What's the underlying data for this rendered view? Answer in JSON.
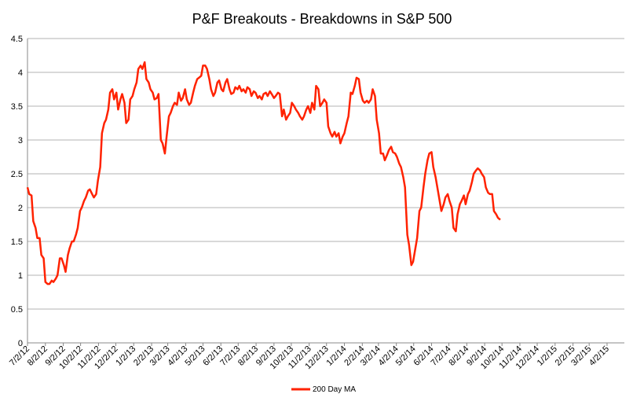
{
  "chart_data": {
    "type": "line",
    "title": "P&F Breakouts - Breakdowns in S&P 500",
    "xlabel": "",
    "ylabel": "",
    "ylim": [
      0,
      4.5
    ],
    "y_ticks": [
      "0",
      "0.5",
      "1",
      "1.5",
      "2",
      "2.5",
      "3",
      "3.5",
      "4",
      "4.5"
    ],
    "x_range": [
      "2012-07-02",
      "2015-05-02"
    ],
    "x_ticks": [
      {
        "date": "2012-07-02",
        "label": "7/2/12"
      },
      {
        "date": "2012-08-02",
        "label": "8/2/12"
      },
      {
        "date": "2012-09-02",
        "label": "9/2/12"
      },
      {
        "date": "2012-10-02",
        "label": "10/2/12"
      },
      {
        "date": "2012-11-02",
        "label": "11/2/12"
      },
      {
        "date": "2012-12-02",
        "label": "12/2/12"
      },
      {
        "date": "2013-01-02",
        "label": "1/2/13"
      },
      {
        "date": "2013-02-02",
        "label": "2/2/13"
      },
      {
        "date": "2013-03-02",
        "label": "3/2/13"
      },
      {
        "date": "2013-04-02",
        "label": "4/2/13"
      },
      {
        "date": "2013-05-02",
        "label": "5/2/13"
      },
      {
        "date": "2013-06-02",
        "label": "6/2/13"
      },
      {
        "date": "2013-07-02",
        "label": "7/2/13"
      },
      {
        "date": "2013-08-02",
        "label": "8/2/13"
      },
      {
        "date": "2013-09-02",
        "label": "9/2/13"
      },
      {
        "date": "2013-10-02",
        "label": "10/2/13"
      },
      {
        "date": "2013-11-02",
        "label": "11/2/13"
      },
      {
        "date": "2013-12-02",
        "label": "12/2/13"
      },
      {
        "date": "2014-01-02",
        "label": "1/2/14"
      },
      {
        "date": "2014-02-02",
        "label": "2/2/14"
      },
      {
        "date": "2014-03-02",
        "label": "3/2/14"
      },
      {
        "date": "2014-04-02",
        "label": "4/2/14"
      },
      {
        "date": "2014-05-02",
        "label": "5/2/14"
      },
      {
        "date": "2014-06-02",
        "label": "6/2/14"
      },
      {
        "date": "2014-07-02",
        "label": "7/2/14"
      },
      {
        "date": "2014-08-02",
        "label": "8/2/14"
      },
      {
        "date": "2014-09-02",
        "label": "9/2/14"
      },
      {
        "date": "2014-10-02",
        "label": "10/2/14"
      },
      {
        "date": "2014-11-02",
        "label": "11/2/14"
      },
      {
        "date": "2014-12-02",
        "label": "12/2/14"
      },
      {
        "date": "2015-01-02",
        "label": "1/2/15"
      },
      {
        "date": "2015-02-02",
        "label": "2/2/15"
      },
      {
        "date": "2015-03-02",
        "label": "3/2/15"
      },
      {
        "date": "2015-04-02",
        "label": "4/2/15"
      }
    ],
    "grid": {
      "horizontal": true,
      "vertical": false
    },
    "legend_position": "bottom",
    "series": [
      {
        "name": "200 Day MA",
        "color": "#ff2200",
        "points": [
          [
            "2012-07-02",
            2.3
          ],
          [
            "2012-07-05",
            2.2
          ],
          [
            "2012-07-09",
            2.18
          ],
          [
            "2012-07-12",
            1.8
          ],
          [
            "2012-07-16",
            1.7
          ],
          [
            "2012-07-19",
            1.55
          ],
          [
            "2012-07-23",
            1.55
          ],
          [
            "2012-07-26",
            1.3
          ],
          [
            "2012-07-30",
            1.25
          ],
          [
            "2012-08-02",
            0.9
          ],
          [
            "2012-08-06",
            0.87
          ],
          [
            "2012-08-09",
            0.87
          ],
          [
            "2012-08-13",
            0.92
          ],
          [
            "2012-08-16",
            0.9
          ],
          [
            "2012-08-20",
            0.95
          ],
          [
            "2012-08-23",
            1.0
          ],
          [
            "2012-08-27",
            1.25
          ],
          [
            "2012-08-30",
            1.25
          ],
          [
            "2012-09-03",
            1.15
          ],
          [
            "2012-09-06",
            1.05
          ],
          [
            "2012-09-10",
            1.3
          ],
          [
            "2012-09-13",
            1.4
          ],
          [
            "2012-09-17",
            1.5
          ],
          [
            "2012-09-20",
            1.5
          ],
          [
            "2012-09-24",
            1.6
          ],
          [
            "2012-09-27",
            1.7
          ],
          [
            "2012-10-01",
            1.95
          ],
          [
            "2012-10-04",
            2.0
          ],
          [
            "2012-10-08",
            2.1
          ],
          [
            "2012-10-11",
            2.15
          ],
          [
            "2012-10-15",
            2.25
          ],
          [
            "2012-10-18",
            2.27
          ],
          [
            "2012-10-22",
            2.2
          ],
          [
            "2012-10-25",
            2.15
          ],
          [
            "2012-10-29",
            2.2
          ],
          [
            "2012-11-01",
            2.4
          ],
          [
            "2012-11-05",
            2.6
          ],
          [
            "2012-11-08",
            3.1
          ],
          [
            "2012-11-12",
            3.25
          ],
          [
            "2012-11-15",
            3.3
          ],
          [
            "2012-11-19",
            3.45
          ],
          [
            "2012-11-22",
            3.7
          ],
          [
            "2012-11-26",
            3.75
          ],
          [
            "2012-11-29",
            3.6
          ],
          [
            "2012-12-03",
            3.7
          ],
          [
            "2012-12-06",
            3.45
          ],
          [
            "2012-12-10",
            3.6
          ],
          [
            "2012-12-13",
            3.68
          ],
          [
            "2012-12-17",
            3.55
          ],
          [
            "2012-12-20",
            3.25
          ],
          [
            "2012-12-24",
            3.3
          ],
          [
            "2012-12-27",
            3.6
          ],
          [
            "2012-12-31",
            3.65
          ],
          [
            "2013-01-03",
            3.75
          ],
          [
            "2013-01-07",
            3.85
          ],
          [
            "2013-01-10",
            4.05
          ],
          [
            "2013-01-14",
            4.1
          ],
          [
            "2013-01-17",
            4.05
          ],
          [
            "2013-01-21",
            4.15
          ],
          [
            "2013-01-24",
            3.9
          ],
          [
            "2013-01-28",
            3.85
          ],
          [
            "2013-01-31",
            3.75
          ],
          [
            "2013-02-04",
            3.7
          ],
          [
            "2013-02-07",
            3.6
          ],
          [
            "2013-02-11",
            3.62
          ],
          [
            "2013-02-14",
            3.68
          ],
          [
            "2013-02-18",
            3.0
          ],
          [
            "2013-02-21",
            2.95
          ],
          [
            "2013-02-25",
            2.8
          ],
          [
            "2013-02-28",
            3.05
          ],
          [
            "2013-03-04",
            3.35
          ],
          [
            "2013-03-07",
            3.4
          ],
          [
            "2013-03-11",
            3.5
          ],
          [
            "2013-03-14",
            3.55
          ],
          [
            "2013-03-18",
            3.52
          ],
          [
            "2013-03-21",
            3.7
          ],
          [
            "2013-03-25",
            3.58
          ],
          [
            "2013-03-28",
            3.62
          ],
          [
            "2013-04-01",
            3.75
          ],
          [
            "2013-04-04",
            3.6
          ],
          [
            "2013-04-08",
            3.52
          ],
          [
            "2013-04-11",
            3.55
          ],
          [
            "2013-04-15",
            3.7
          ],
          [
            "2013-04-18",
            3.8
          ],
          [
            "2013-04-22",
            3.9
          ],
          [
            "2013-04-25",
            3.92
          ],
          [
            "2013-04-29",
            3.95
          ],
          [
            "2013-05-02",
            4.1
          ],
          [
            "2013-05-06",
            4.1
          ],
          [
            "2013-05-09",
            4.05
          ],
          [
            "2013-05-13",
            3.9
          ],
          [
            "2013-05-16",
            3.75
          ],
          [
            "2013-05-20",
            3.65
          ],
          [
            "2013-05-23",
            3.7
          ],
          [
            "2013-05-27",
            3.85
          ],
          [
            "2013-05-30",
            3.88
          ],
          [
            "2013-06-03",
            3.75
          ],
          [
            "2013-06-06",
            3.72
          ],
          [
            "2013-06-10",
            3.85
          ],
          [
            "2013-06-13",
            3.9
          ],
          [
            "2013-06-17",
            3.75
          ],
          [
            "2013-06-20",
            3.68
          ],
          [
            "2013-06-24",
            3.7
          ],
          [
            "2013-06-27",
            3.78
          ],
          [
            "2013-07-01",
            3.75
          ],
          [
            "2013-07-04",
            3.8
          ],
          [
            "2013-07-08",
            3.72
          ],
          [
            "2013-07-11",
            3.75
          ],
          [
            "2013-07-15",
            3.7
          ],
          [
            "2013-07-18",
            3.78
          ],
          [
            "2013-07-22",
            3.75
          ],
          [
            "2013-07-25",
            3.65
          ],
          [
            "2013-07-29",
            3.72
          ],
          [
            "2013-08-01",
            3.7
          ],
          [
            "2013-08-05",
            3.62
          ],
          [
            "2013-08-08",
            3.65
          ],
          [
            "2013-08-12",
            3.6
          ],
          [
            "2013-08-15",
            3.68
          ],
          [
            "2013-08-19",
            3.7
          ],
          [
            "2013-08-22",
            3.65
          ],
          [
            "2013-08-26",
            3.72
          ],
          [
            "2013-08-29",
            3.68
          ],
          [
            "2013-09-02",
            3.62
          ],
          [
            "2013-09-05",
            3.65
          ],
          [
            "2013-09-09",
            3.7
          ],
          [
            "2013-09-12",
            3.68
          ],
          [
            "2013-09-16",
            3.35
          ],
          [
            "2013-09-19",
            3.45
          ],
          [
            "2013-09-23",
            3.3
          ],
          [
            "2013-09-26",
            3.35
          ],
          [
            "2013-09-30",
            3.4
          ],
          [
            "2013-10-03",
            3.55
          ],
          [
            "2013-10-07",
            3.5
          ],
          [
            "2013-10-10",
            3.45
          ],
          [
            "2013-10-14",
            3.4
          ],
          [
            "2013-10-17",
            3.35
          ],
          [
            "2013-10-21",
            3.3
          ],
          [
            "2013-10-24",
            3.35
          ],
          [
            "2013-10-28",
            3.45
          ],
          [
            "2013-10-31",
            3.5
          ],
          [
            "2013-11-04",
            3.4
          ],
          [
            "2013-11-07",
            3.55
          ],
          [
            "2013-11-11",
            3.45
          ],
          [
            "2013-11-14",
            3.8
          ],
          [
            "2013-11-18",
            3.75
          ],
          [
            "2013-11-21",
            3.5
          ],
          [
            "2013-11-25",
            3.55
          ],
          [
            "2013-11-28",
            3.6
          ],
          [
            "2013-12-02",
            3.55
          ],
          [
            "2013-12-05",
            3.2
          ],
          [
            "2013-12-09",
            3.1
          ],
          [
            "2013-12-12",
            3.05
          ],
          [
            "2013-12-16",
            3.12
          ],
          [
            "2013-12-19",
            3.05
          ],
          [
            "2013-12-23",
            3.1
          ],
          [
            "2013-12-26",
            2.95
          ],
          [
            "2013-12-30",
            3.05
          ],
          [
            "2014-01-02",
            3.1
          ],
          [
            "2014-01-06",
            3.25
          ],
          [
            "2014-01-09",
            3.35
          ],
          [
            "2014-01-13",
            3.7
          ],
          [
            "2014-01-16",
            3.68
          ],
          [
            "2014-01-20",
            3.8
          ],
          [
            "2014-01-23",
            3.92
          ],
          [
            "2014-01-27",
            3.9
          ],
          [
            "2014-01-30",
            3.7
          ],
          [
            "2014-02-03",
            3.58
          ],
          [
            "2014-02-06",
            3.55
          ],
          [
            "2014-02-10",
            3.58
          ],
          [
            "2014-02-13",
            3.55
          ],
          [
            "2014-02-17",
            3.6
          ],
          [
            "2014-02-20",
            3.75
          ],
          [
            "2014-02-24",
            3.65
          ],
          [
            "2014-02-27",
            3.3
          ],
          [
            "2014-03-03",
            3.1
          ],
          [
            "2014-03-06",
            2.8
          ],
          [
            "2014-03-10",
            2.8
          ],
          [
            "2014-03-13",
            2.7
          ],
          [
            "2014-03-17",
            2.78
          ],
          [
            "2014-03-20",
            2.85
          ],
          [
            "2014-03-24",
            2.9
          ],
          [
            "2014-03-27",
            2.82
          ],
          [
            "2014-03-31",
            2.8
          ],
          [
            "2014-04-03",
            2.75
          ],
          [
            "2014-04-07",
            2.65
          ],
          [
            "2014-04-10",
            2.6
          ],
          [
            "2014-04-14",
            2.45
          ],
          [
            "2014-04-17",
            2.3
          ],
          [
            "2014-04-21",
            1.6
          ],
          [
            "2014-04-24",
            1.45
          ],
          [
            "2014-04-28",
            1.15
          ],
          [
            "2014-05-01",
            1.2
          ],
          [
            "2014-05-05",
            1.4
          ],
          [
            "2014-05-08",
            1.55
          ],
          [
            "2014-05-12",
            1.95
          ],
          [
            "2014-05-15",
            2.0
          ],
          [
            "2014-05-19",
            2.3
          ],
          [
            "2014-05-22",
            2.5
          ],
          [
            "2014-05-26",
            2.7
          ],
          [
            "2014-05-29",
            2.8
          ],
          [
            "2014-06-02",
            2.82
          ],
          [
            "2014-06-05",
            2.6
          ],
          [
            "2014-06-09",
            2.45
          ],
          [
            "2014-06-12",
            2.3
          ],
          [
            "2014-06-16",
            2.1
          ],
          [
            "2014-06-19",
            1.95
          ],
          [
            "2014-06-23",
            2.05
          ],
          [
            "2014-06-26",
            2.15
          ],
          [
            "2014-06-30",
            2.2
          ],
          [
            "2014-07-03",
            2.1
          ],
          [
            "2014-07-07",
            2.0
          ],
          [
            "2014-07-10",
            1.7
          ],
          [
            "2014-07-14",
            1.65
          ],
          [
            "2014-07-17",
            1.9
          ],
          [
            "2014-07-21",
            2.05
          ],
          [
            "2014-07-24",
            2.1
          ],
          [
            "2014-07-28",
            2.18
          ],
          [
            "2014-07-31",
            2.05
          ],
          [
            "2014-08-04",
            2.2
          ],
          [
            "2014-08-07",
            2.25
          ],
          [
            "2014-08-11",
            2.38
          ],
          [
            "2014-08-14",
            2.5
          ],
          [
            "2014-08-18",
            2.55
          ],
          [
            "2014-08-21",
            2.58
          ],
          [
            "2014-08-25",
            2.55
          ],
          [
            "2014-08-28",
            2.5
          ],
          [
            "2014-09-01",
            2.45
          ],
          [
            "2014-09-04",
            2.3
          ],
          [
            "2014-09-08",
            2.22
          ],
          [
            "2014-09-11",
            2.2
          ],
          [
            "2014-09-15",
            2.2
          ],
          [
            "2014-09-18",
            1.95
          ],
          [
            "2014-09-22",
            1.9
          ],
          [
            "2014-09-25",
            1.85
          ],
          [
            "2014-09-29",
            1.82
          ]
        ]
      }
    ]
  }
}
